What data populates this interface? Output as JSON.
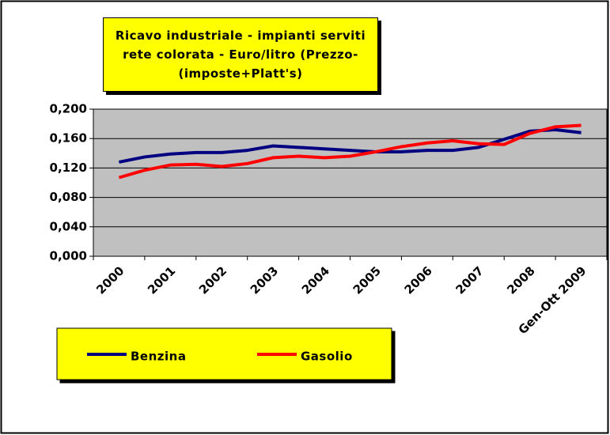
{
  "chart_data": {
    "type": "line",
    "title": "Ricavo industriale - impianti serviti rete colorata - Euro/litro (Prezzo-(imposte+Platt's)",
    "categories": [
      "2000",
      null,
      "2001",
      null,
      "2002",
      null,
      "2003",
      null,
      "2004",
      null,
      "2005",
      null,
      "2006",
      null,
      "2007",
      null,
      "2008",
      null,
      "Gen-Ott 2009"
    ],
    "series": [
      {
        "name": "Benzina",
        "color": "#000080",
        "values": [
          0.128,
          0.135,
          0.139,
          0.141,
          0.141,
          0.144,
          0.15,
          0.148,
          0.146,
          0.144,
          0.142,
          0.142,
          0.144,
          0.144,
          0.148,
          0.159,
          0.17,
          0.172,
          0.168
        ]
      },
      {
        "name": "Gasolio",
        "color": "#ff0000",
        "values": [
          0.107,
          0.117,
          0.124,
          0.125,
          0.122,
          0.126,
          0.134,
          0.136,
          0.134,
          0.136,
          0.142,
          0.149,
          0.154,
          0.157,
          0.153,
          0.152,
          0.167,
          0.176,
          0.178
        ]
      }
    ],
    "ylim": [
      0,
      0.2
    ],
    "yticks": [
      {
        "value": 0,
        "label": "0,000"
      },
      {
        "value": 0.04,
        "label": "0,040"
      },
      {
        "value": 0.08,
        "label": "0,080"
      },
      {
        "value": 0.12,
        "label": "0,120"
      },
      {
        "value": 0.16,
        "label": "0,160"
      },
      {
        "value": 0.2,
        "label": "0,200"
      }
    ],
    "grid": true,
    "plot_background": "#c0c0c0"
  }
}
